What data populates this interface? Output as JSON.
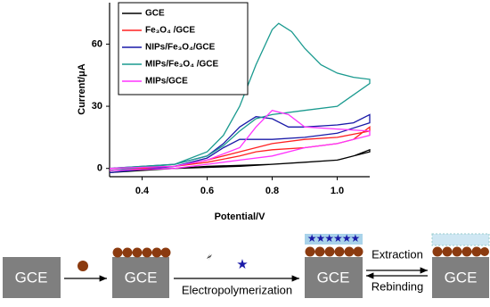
{
  "chart_data": {
    "type": "line",
    "x_label": "Potential/V",
    "y_label": "Current/μA",
    "xlim": [
      0.3,
      1.1
    ],
    "ylim": [
      -4,
      80
    ],
    "xticks": [
      0.4,
      0.6,
      0.8,
      {
        "value": 1,
        "label": "1.0"
      }
    ],
    "yticks": [
      0,
      30,
      60
    ],
    "legend": "upper left",
    "series": [
      {
        "name": "GCE",
        "color": "#000000",
        "x": [
          0.3,
          0.5,
          0.7,
          0.9,
          1.0,
          1.05,
          1.1,
          1.1,
          1.0,
          0.8,
          0.6,
          0.4,
          0.3
        ],
        "values": [
          -1,
          0,
          1,
          3,
          4,
          6,
          9,
          8,
          4,
          2,
          1,
          -1,
          -2
        ]
      },
      {
        "name": "Fe₃O₄ /GCE",
        "color": "#ff2020",
        "x": [
          0.3,
          0.5,
          0.6,
          0.7,
          0.75,
          0.8,
          0.9,
          1.0,
          1.05,
          1.1,
          1.1,
          1.0,
          0.9,
          0.8,
          0.7,
          0.6,
          0.5,
          0.3
        ],
        "values": [
          0,
          1,
          3,
          6,
          8,
          9,
          10,
          12,
          14,
          20,
          18,
          15,
          14,
          12,
          8,
          4,
          1,
          -1
        ]
      },
      {
        "name": "NIPs/Fe₃O₄/GCE",
        "color": "#1a1aa8",
        "x": [
          0.3,
          0.5,
          0.6,
          0.65,
          0.7,
          0.75,
          0.8,
          0.85,
          0.9,
          1.0,
          1.05,
          1.1,
          1.1,
          1.0,
          0.9,
          0.8,
          0.7,
          0.65,
          0.6,
          0.5,
          0.3
        ],
        "values": [
          0,
          2,
          6,
          12,
          20,
          25,
          24,
          20,
          20,
          21,
          22,
          26,
          22,
          17,
          15,
          14,
          14,
          10,
          5,
          1,
          -2
        ]
      },
      {
        "name": "MIPs/Fe₃O₄ /GCE",
        "color": "#1a9a8f",
        "x": [
          0.3,
          0.5,
          0.6,
          0.65,
          0.7,
          0.75,
          0.8,
          0.82,
          0.86,
          0.9,
          0.95,
          1.0,
          1.05,
          1.1,
          1.1,
          1.0,
          0.9,
          0.8,
          0.75,
          0.7,
          0.65,
          0.6,
          0.5,
          0.3
        ],
        "values": [
          0,
          2,
          8,
          16,
          30,
          50,
          67,
          70,
          66,
          58,
          50,
          46,
          44,
          43,
          41,
          30,
          28,
          26,
          24,
          18,
          11,
          6,
          2,
          -1
        ]
      },
      {
        "name": "MIPs/GCE",
        "color": "#ff33ff",
        "x": [
          0.3,
          0.5,
          0.6,
          0.7,
          0.75,
          0.8,
          0.85,
          0.9,
          1.0,
          1.1,
          1.1,
          1.0,
          0.9,
          0.8,
          0.7,
          0.6,
          0.5,
          0.3
        ],
        "values": [
          0,
          1,
          4,
          10,
          20,
          28,
          26,
          20,
          19,
          18,
          16,
          12,
          10,
          6,
          4,
          2,
          0,
          -1
        ]
      }
    ]
  },
  "diagram": {
    "electrodes": [
      "GCE",
      "GCE",
      "GCE",
      "GCE"
    ],
    "steps": [
      "Electropolymerization",
      "Extraction",
      "Rebinding"
    ]
  }
}
